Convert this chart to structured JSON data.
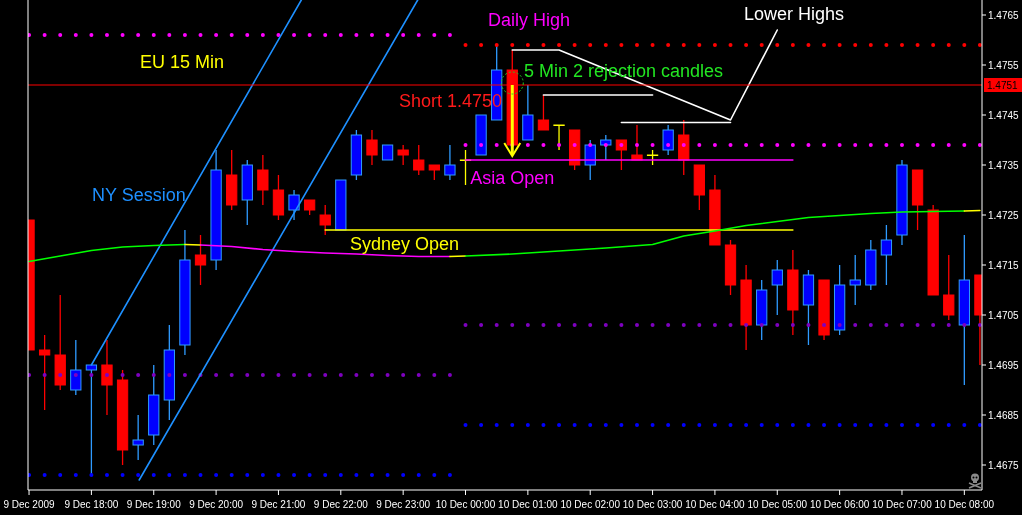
{
  "chart_data": {
    "type": "candlestick",
    "title": "EU 15 Min",
    "x": [
      "2009-12-09T17:00",
      "2009-12-09T17:15",
      "2009-12-09T17:30",
      "2009-12-09T17:45",
      "2009-12-09T18:00",
      "2009-12-09T18:15",
      "2009-12-09T18:30",
      "2009-12-09T18:45",
      "2009-12-09T19:00",
      "2009-12-09T19:15",
      "2009-12-09T19:30",
      "2009-12-09T19:45",
      "2009-12-09T20:00",
      "2009-12-09T20:15",
      "2009-12-09T20:30",
      "2009-12-09T20:45",
      "2009-12-09T21:00",
      "2009-12-09T21:15",
      "2009-12-09T21:30",
      "2009-12-09T21:45",
      "2009-12-09T22:00",
      "2009-12-09T22:15",
      "2009-12-09T22:30",
      "2009-12-09T22:45",
      "2009-12-09T23:00",
      "2009-12-09T23:15",
      "2009-12-09T23:30",
      "2009-12-09T23:45",
      "2009-12-10T00:00",
      "2009-12-10T00:15",
      "2009-12-10T00:30",
      "2009-12-10T00:45",
      "2009-12-10T01:00",
      "2009-12-10T01:15",
      "2009-12-10T01:30",
      "2009-12-10T01:45",
      "2009-12-10T02:00",
      "2009-12-10T02:15",
      "2009-12-10T02:30",
      "2009-12-10T02:45",
      "2009-12-10T03:00",
      "2009-12-10T03:15",
      "2009-12-10T03:30",
      "2009-12-10T03:45",
      "2009-12-10T04:00",
      "2009-12-10T04:15",
      "2009-12-10T04:30",
      "2009-12-10T04:45",
      "2009-12-10T05:00",
      "2009-12-10T05:15",
      "2009-12-10T05:30",
      "2009-12-10T05:45",
      "2009-12-10T06:00",
      "2009-12-10T06:15",
      "2009-12-10T06:30",
      "2009-12-10T06:45",
      "2009-12-10T07:00",
      "2009-12-10T07:15",
      "2009-12-10T07:30",
      "2009-12-10T07:45",
      "2009-12-10T08:00",
      "2009-12-10T08:15"
    ],
    "ohlc": [
      [
        1.4724,
        1.4724,
        1.4698,
        1.4698
      ],
      [
        1.4698,
        1.4701,
        1.4686,
        1.4697
      ],
      [
        1.4697,
        1.4709,
        1.469,
        1.4691
      ],
      [
        1.469,
        1.47,
        1.4689,
        1.4694
      ],
      [
        1.4694,
        1.4695,
        1.4673,
        1.4695
      ],
      [
        1.4695,
        1.47,
        1.4685,
        1.4691
      ],
      [
        1.4692,
        1.4694,
        1.4675,
        1.4678
      ],
      [
        1.4679,
        1.4685,
        1.4676,
        1.468
      ],
      [
        1.4681,
        1.4695,
        1.4679,
        1.4689
      ],
      [
        1.4688,
        1.4703,
        1.4684,
        1.4698
      ],
      [
        1.4699,
        1.4722,
        1.4697,
        1.4716
      ],
      [
        1.4717,
        1.4721,
        1.4711,
        1.4715
      ],
      [
        1.4716,
        1.4738,
        1.4714,
        1.4734
      ],
      [
        1.4733,
        1.4738,
        1.4726,
        1.4727
      ],
      [
        1.4728,
        1.4736,
        1.4723,
        1.4735
      ],
      [
        1.4734,
        1.4737,
        1.4727,
        1.473
      ],
      [
        1.473,
        1.4733,
        1.4724,
        1.4725
      ],
      [
        1.4726,
        1.473,
        1.4724,
        1.4729
      ],
      [
        1.4728,
        1.4728,
        1.4725,
        1.4726
      ],
      [
        1.4725,
        1.4727,
        1.4721,
        1.4723
      ],
      [
        1.4722,
        1.4732,
        1.4722,
        1.4732
      ],
      [
        1.4733,
        1.4742,
        1.4732,
        1.4741
      ],
      [
        1.474,
        1.4742,
        1.4735,
        1.4737
      ],
      [
        1.4736,
        1.4739,
        1.4736,
        1.4739
      ],
      [
        1.4738,
        1.4739,
        1.4735,
        1.4737
      ],
      [
        1.4736,
        1.4739,
        1.4733,
        1.4734
      ],
      [
        1.4735,
        1.4735,
        1.4732,
        1.4734
      ],
      [
        1.4733,
        1.4739,
        1.4732,
        1.4735
      ],
      [
        1.4736,
        1.4738,
        1.4731,
        1.4736
      ],
      [
        1.4737,
        1.4745,
        1.4737,
        1.4745
      ],
      [
        1.4744,
        1.4759,
        1.4744,
        1.4754
      ],
      [
        1.4754,
        1.4758,
        1.4739,
        1.4739
      ],
      [
        1.474,
        1.4751,
        1.474,
        1.4745
      ],
      [
        1.4744,
        1.4749,
        1.4742,
        1.4742
      ],
      [
        1.4743,
        1.4743,
        1.4738,
        1.4743
      ],
      [
        1.4742,
        1.4742,
        1.4734,
        1.4735
      ],
      [
        1.4735,
        1.474,
        1.4732,
        1.4739
      ],
      [
        1.4739,
        1.4741,
        1.4736,
        1.474
      ],
      [
        1.474,
        1.474,
        1.4734,
        1.4738
      ],
      [
        1.4737,
        1.4743,
        1.4736,
        1.4736
      ],
      [
        1.4737,
        1.4738,
        1.4735,
        1.4737
      ],
      [
        1.4738,
        1.4743,
        1.4737,
        1.4742
      ],
      [
        1.4741,
        1.4744,
        1.4733,
        1.4736
      ],
      [
        1.4735,
        1.4735,
        1.4726,
        1.4729
      ],
      [
        1.473,
        1.4733,
        1.4719,
        1.4719
      ],
      [
        1.4719,
        1.472,
        1.4709,
        1.4711
      ],
      [
        1.4712,
        1.4715,
        1.4698,
        1.4703
      ],
      [
        1.4703,
        1.4712,
        1.47,
        1.471
      ],
      [
        1.4711,
        1.4716,
        1.4705,
        1.4714
      ],
      [
        1.4714,
        1.4718,
        1.4701,
        1.4706
      ],
      [
        1.4707,
        1.4714,
        1.4699,
        1.4713
      ],
      [
        1.4712,
        1.4712,
        1.47,
        1.4701
      ],
      [
        1.4702,
        1.4715,
        1.4701,
        1.4711
      ],
      [
        1.4711,
        1.4717,
        1.4707,
        1.4712
      ],
      [
        1.4711,
        1.472,
        1.471,
        1.4718
      ],
      [
        1.4717,
        1.4723,
        1.4711,
        1.472
      ],
      [
        1.4721,
        1.4736,
        1.4719,
        1.4735
      ],
      [
        1.4734,
        1.4734,
        1.4722,
        1.4727
      ],
      [
        1.4726,
        1.4727,
        1.4709,
        1.4709
      ],
      [
        1.4709,
        1.4717,
        1.4704,
        1.4705
      ],
      [
        1.4703,
        1.4721,
        1.4691,
        1.4712
      ],
      [
        1.4713,
        1.4713,
        1.4695,
        1.4705
      ]
    ],
    "colors": [
      "#ff0000",
      "#ff0000",
      "#ff0000",
      "#0000ff",
      "#0000ff",
      "#ff0000",
      "#ff0000",
      "#0000ff",
      "#0000ff",
      "#0000ff",
      "#0000ff",
      "#ff0000",
      "#0000ff",
      "#ff0000",
      "#0000ff",
      "#ff0000",
      "#ff0000",
      "#0000ff",
      "#ff0000",
      "#ff0000",
      "#0000ff",
      "#0000ff",
      "#ff0000",
      "#0000ff",
      "#ff0000",
      "#ff0000",
      "#ff0000",
      "#0000ff",
      "#ffff00",
      "#0000ff",
      "#0000ff",
      "#ff0000",
      "#0000ff",
      "#ff0000",
      "#ffff00",
      "#ff0000",
      "#0000ff",
      "#0000ff",
      "#ff0000",
      "#ff0000",
      "#ffff00",
      "#0000ff",
      "#ff0000",
      "#ff0000",
      "#ff0000",
      "#ff0000",
      "#ff0000",
      "#0000ff",
      "#0000ff",
      "#ff0000",
      "#0000ff",
      "#ff0000",
      "#0000ff",
      "#0000ff",
      "#0000ff",
      "#0000ff",
      "#0000ff",
      "#ff0000",
      "#ff0000",
      "#ff0000",
      "#0000ff",
      "#ff0000"
    ],
    "series": [
      {
        "type": "line",
        "color": "#ff00ff",
        "line_style": "dotted",
        "x": [
          "2009-12-09T17:00",
          "2009-12-09T23:45"
        ],
        "values": [
          1.4761,
          1.4761
        ]
      },
      {
        "type": "line",
        "color": "#7f00c0",
        "line_style": "dotted",
        "x": [
          "2009-12-09T17:00",
          "2009-12-09T23:45"
        ],
        "values": [
          1.4693,
          1.4693
        ]
      },
      {
        "type": "line",
        "color": "#0000ff",
        "line_style": "dotted",
        "x": [
          "2009-12-09T17:00",
          "2009-12-09T23:45"
        ],
        "values": [
          1.4673,
          1.4673
        ]
      },
      {
        "type": "line",
        "color": "#ff0000",
        "line_style": "dotted",
        "x": [
          "2009-12-10T00:00",
          "2009-12-10T08:15"
        ],
        "values": [
          1.4759,
          1.4759
        ]
      },
      {
        "type": "line",
        "color": "#ff00ff",
        "line_style": "dotted",
        "x": [
          "2009-12-10T00:00",
          "2009-12-10T08:15"
        ],
        "values": [
          1.4739,
          1.4739
        ]
      },
      {
        "type": "line",
        "color": "#7f00c0",
        "line_style": "dotted",
        "x": [
          "2009-12-10T00:00",
          "2009-12-10T08:15"
        ],
        "values": [
          1.4703,
          1.4703
        ]
      },
      {
        "type": "line",
        "color": "#0000ff",
        "line_style": "dotted",
        "x": [
          "2009-12-10T00:00",
          "2009-12-10T08:15"
        ],
        "values": [
          1.4683,
          1.4683
        ]
      },
      {
        "type": "line",
        "color": "#1e90ff",
        "x": [
          "2009-12-09T18:00",
          "2009-12-09T21:22"
        ],
        "values": [
          1.4695,
          1.4768
        ]
      },
      {
        "type": "line",
        "color": "#1e90ff",
        "x": [
          "2009-12-09T18:46",
          "2009-12-09T23:14"
        ],
        "values": [
          1.4672,
          1.4768
        ]
      },
      {
        "type": "line",
        "color": "#ffff00",
        "x": [
          "2009-12-09T21:45",
          "2009-12-10T05:15"
        ],
        "values": [
          1.4722,
          1.4722
        ]
      },
      {
        "type": "line",
        "color": "#ff00ff",
        "x": [
          "2009-12-10T00:00",
          "2009-12-10T05:15"
        ],
        "values": [
          1.4736,
          1.4736
        ]
      },
      {
        "type": "line",
        "color": "#ffffff",
        "x": [
          "2009-12-10T00:45",
          "2009-12-10T01:30",
          "2009-12-10T04:15",
          "2009-12-10T05:00"
        ],
        "values": [
          1.4758,
          1.4758,
          1.4744,
          1.4762
        ]
      },
      {
        "type": "line",
        "color": "#ffffff",
        "x": [
          "2009-12-10T01:15",
          "2009-12-10T03:00"
        ],
        "values": [
          1.4749,
          1.4749
        ]
      },
      {
        "type": "line",
        "color": "#ffffff",
        "x": [
          "2009-12-10T02:30",
          "2009-12-10T04:15"
        ],
        "values": [
          1.47435,
          1.47435
        ]
      },
      {
        "type": "line",
        "color": "#00ff00",
        "x": [
          "2009-12-09T17:00",
          "2009-12-09T17:30",
          "2009-12-09T18:00",
          "2009-12-09T18:30",
          "2009-12-09T19:00",
          "2009-12-09T19:30"
        ],
        "values": [
          1.47157,
          1.47168,
          1.47179,
          1.47186,
          1.47189,
          1.47191
        ]
      },
      {
        "type": "line",
        "color": "#ffff00",
        "x": [
          "2009-12-09T19:30",
          "2009-12-09T19:45"
        ],
        "values": [
          1.47191,
          1.4719
        ]
      },
      {
        "type": "line",
        "color": "#ff00ff",
        "x": [
          "2009-12-09T19:45",
          "2009-12-09T20:15",
          "2009-12-09T20:45",
          "2009-12-09T21:15",
          "2009-12-09T21:45",
          "2009-12-09T22:15",
          "2009-12-09T22:45",
          "2009-12-09T23:15",
          "2009-12-09T23:45"
        ],
        "values": [
          1.4719,
          1.47187,
          1.47181,
          1.47177,
          1.47174,
          1.47172,
          1.47169,
          1.47167,
          1.47167
        ]
      },
      {
        "type": "line",
        "color": "#ffff00",
        "x": [
          "2009-12-09T23:45",
          "2009-12-10T00:00"
        ],
        "values": [
          1.47167,
          1.47168
        ]
      },
      {
        "type": "line",
        "color": "#00ff00",
        "x": [
          "2009-12-10T00:00",
          "2009-12-10T00:45",
          "2009-12-10T01:30",
          "2009-12-10T02:15",
          "2009-12-10T03:00",
          "2009-12-10T03:30",
          "2009-12-10T04:00",
          "2009-12-10T04:30",
          "2009-12-10T05:00",
          "2009-12-10T05:30",
          "2009-12-10T06:00",
          "2009-12-10T06:30",
          "2009-12-10T07:00",
          "2009-12-10T07:30",
          "2009-12-10T08:00"
        ],
        "values": [
          1.47168,
          1.47172,
          1.47178,
          1.47184,
          1.47191,
          1.47208,
          1.47218,
          1.47229,
          1.47237,
          1.47245,
          1.47249,
          1.47253,
          1.47256,
          1.47257,
          1.47258
        ]
      },
      {
        "type": "line",
        "color": "#ffff00",
        "x": [
          "2009-12-10T08:00",
          "2009-12-10T08:15"
        ],
        "values": [
          1.47258,
          1.47259
        ]
      }
    ],
    "xlim": [
      "2009-12-09T16:59",
      "2009-12-10T08:17"
    ],
    "ylim": [
      1.467,
      1.4768
    ],
    "xticks": [
      {
        "value": "2009-12-09T17:00",
        "label": "9 Dec 2009"
      },
      {
        "value": "2009-12-09T18:00",
        "label": "9 Dec 18:00"
      },
      {
        "value": "2009-12-09T19:00",
        "label": "9 Dec 19:00"
      },
      {
        "value": "2009-12-09T20:00",
        "label": "9 Dec 20:00"
      },
      {
        "value": "2009-12-09T21:00",
        "label": "9 Dec 21:00"
      },
      {
        "value": "2009-12-09T22:00",
        "label": "9 Dec 22:00"
      },
      {
        "value": "2009-12-09T23:00",
        "label": "9 Dec 23:00"
      },
      {
        "value": "2009-12-10T00:00",
        "label": "10 Dec 00:00"
      },
      {
        "value": "2009-12-10T01:00",
        "label": "10 Dec 01:00"
      },
      {
        "value": "2009-12-10T02:00",
        "label": "10 Dec 02:00"
      },
      {
        "value": "2009-12-10T03:00",
        "label": "10 Dec 03:00"
      },
      {
        "value": "2009-12-10T04:00",
        "label": "10 Dec 04:00"
      },
      {
        "value": "2009-12-10T05:00",
        "label": "10 Dec 05:00"
      },
      {
        "value": "2009-12-10T06:00",
        "label": "10 Dec 06:00"
      },
      {
        "value": "2009-12-10T07:00",
        "label": "10 Dec 07:00"
      },
      {
        "value": "2009-12-10T08:00",
        "label": "10 Dec 08:00"
      }
    ],
    "yticks": [
      1.4675,
      1.4685,
      1.4695,
      1.4705,
      1.4715,
      1.4725,
      1.4735,
      1.4745,
      1.4755,
      1.4765
    ],
    "ref_lines": [
      {
        "axis": "y",
        "value": 1.4751,
        "label": "1.4751",
        "color": "#ff0000"
      }
    ],
    "annotations": [
      "NY Session",
      "Daily High",
      "Lower Highs",
      "5 Min 2 rejection candles",
      "Short 1.4750",
      {
        "text": "Asia Open",
        "x": "2009-12-10T00:45",
        "y": 1.4736
      },
      "Sydney Open"
    ]
  }
}
